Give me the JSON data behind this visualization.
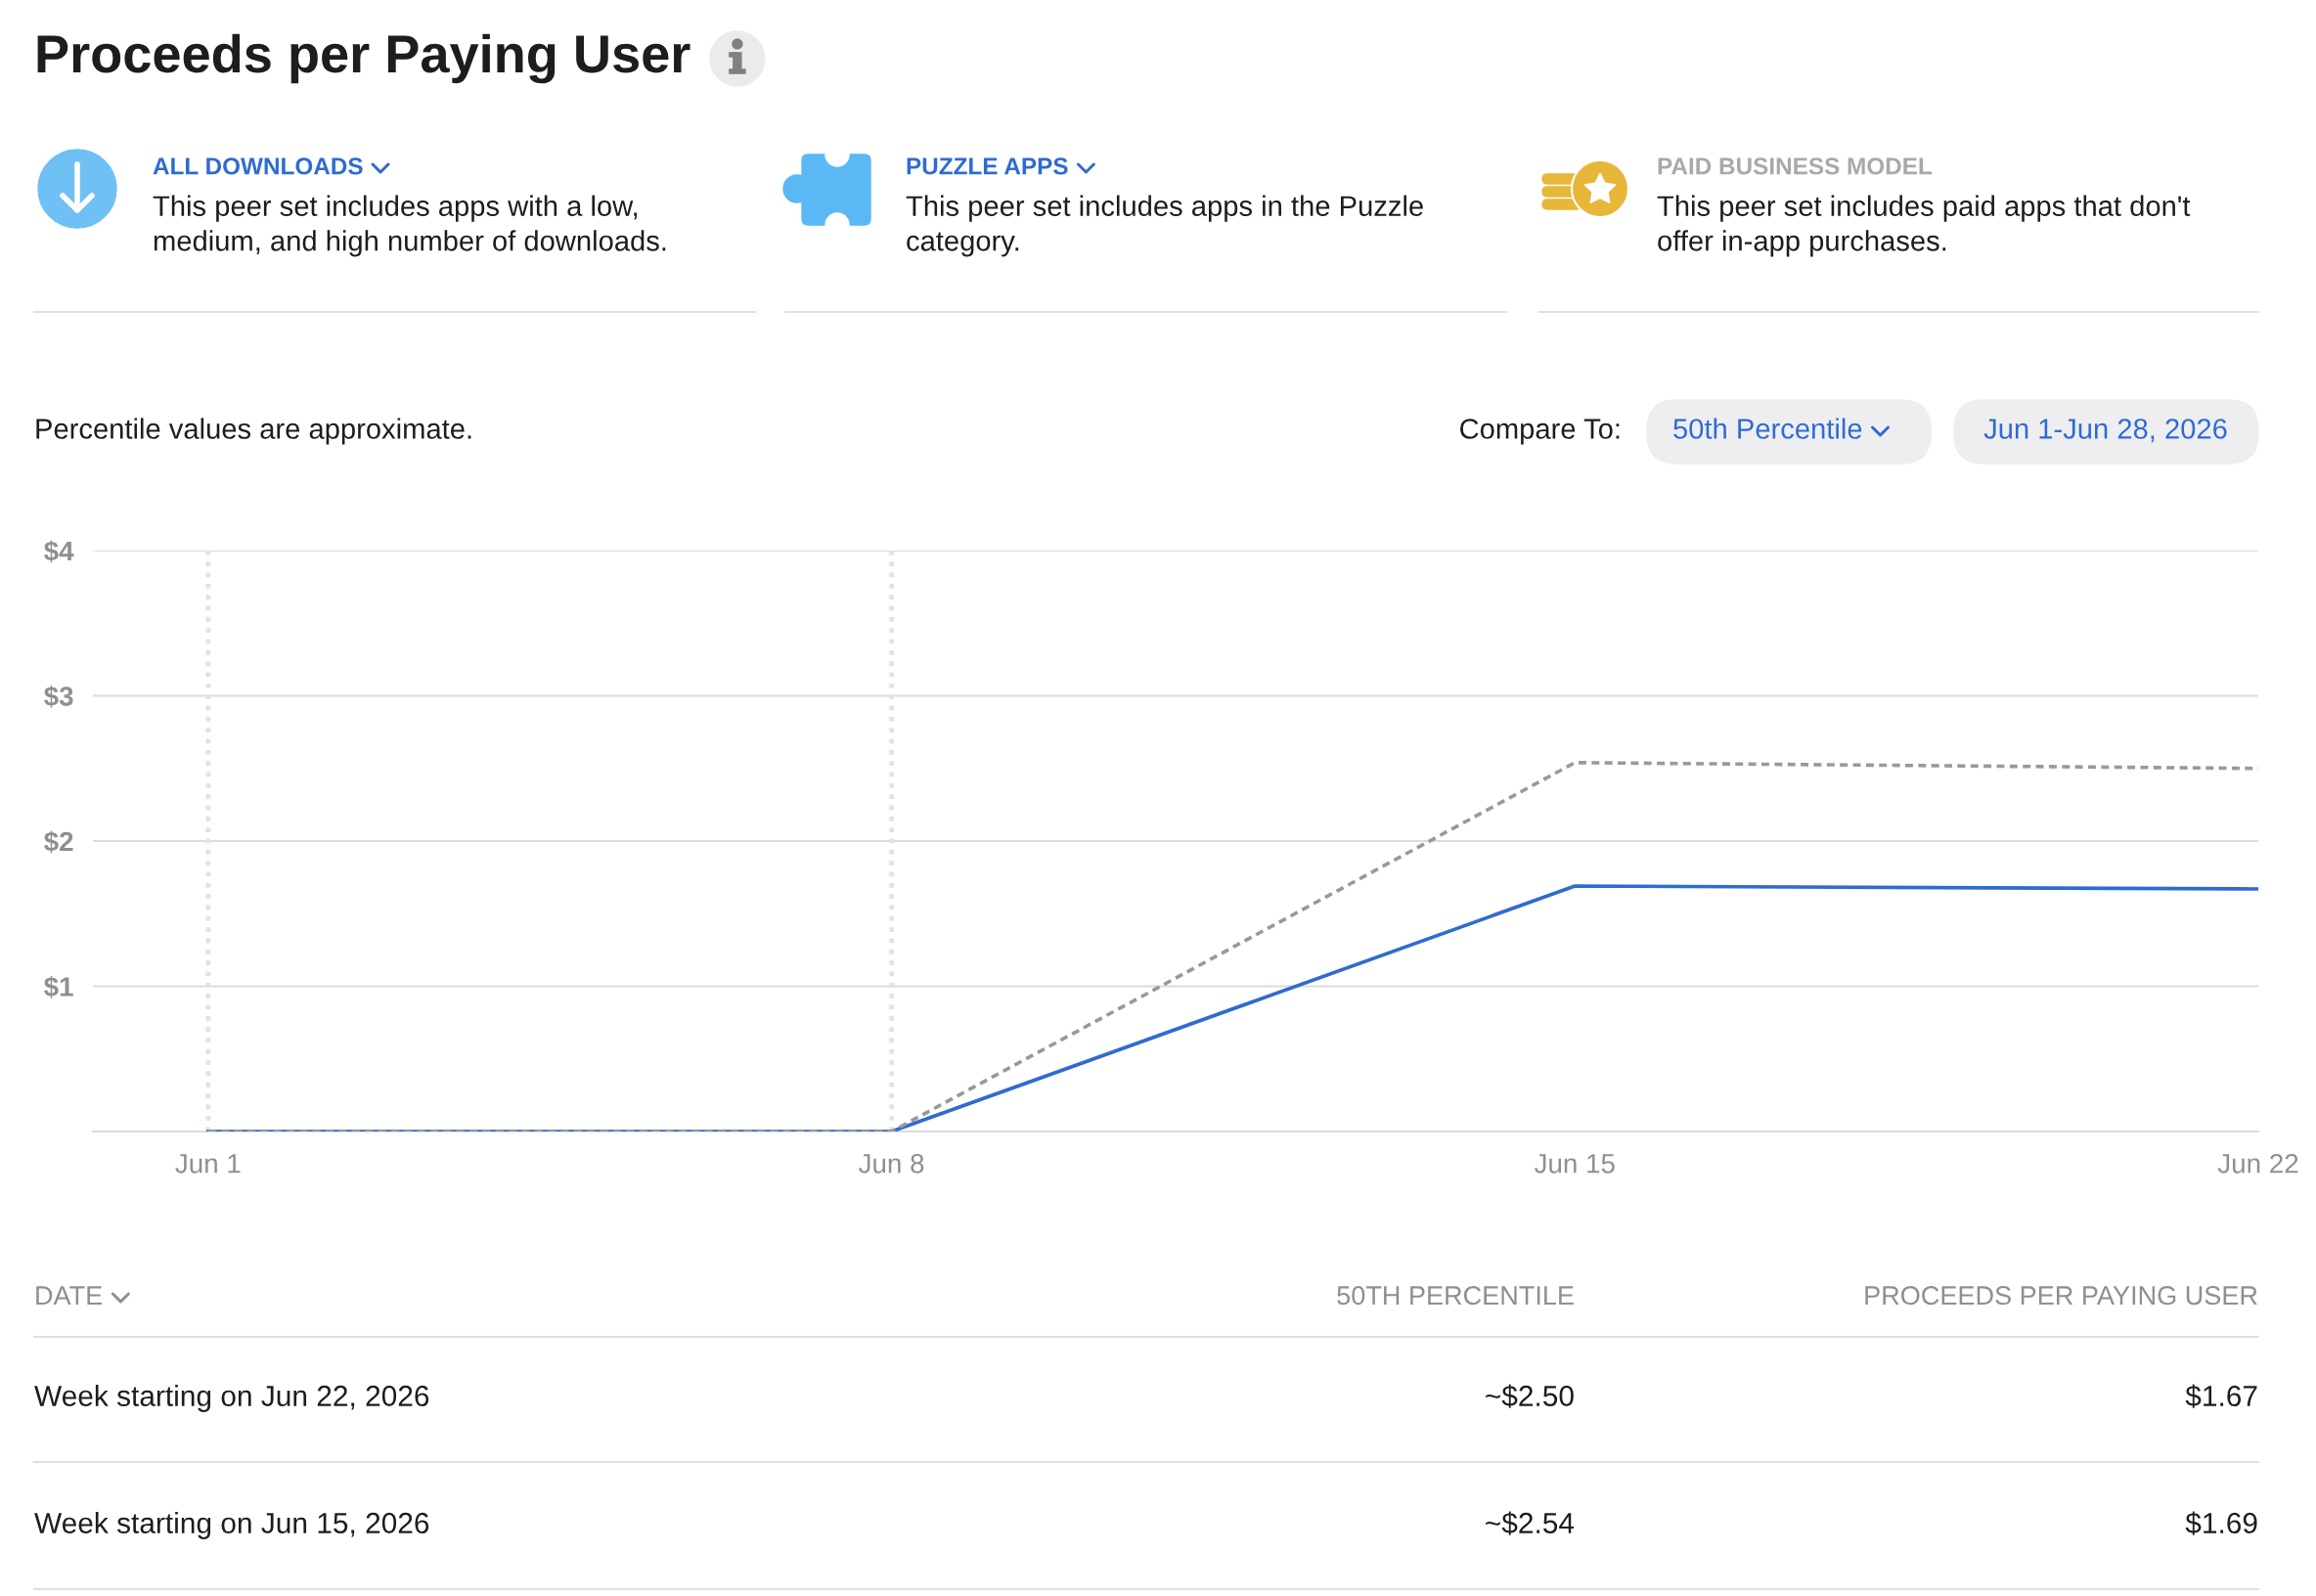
{
  "chart_data": {
    "type": "line",
    "title": "Proceeds per Paying User",
    "x": [
      "2026-06-01",
      "2026-06-08",
      "2026-06-15",
      "2026-06-22"
    ],
    "series": [
      {
        "color": "#2f6bd0",
        "line_style": "solid",
        "values": [
          0,
          0,
          1.69,
          1.67
        ]
      },
      {
        "color": "#999999",
        "line_style": "dashed",
        "values": [
          0,
          0,
          2.54,
          2.5
        ]
      }
    ],
    "xlim": [
      "2026-05-30T19:40",
      "2026-06-22"
    ],
    "xticks": [
      {
        "value": "2026-06-01",
        "label": "Jun 1"
      },
      {
        "value": "2026-06-08",
        "label": "Jun 8"
      },
      {
        "value": "2026-06-15",
        "label": "Jun 15"
      },
      {
        "value": "2026-06-22",
        "label": "Jun 22"
      }
    ],
    "ylim": [
      0,
      4
    ],
    "yticks": [
      {
        "value": 0,
        "label": null
      },
      {
        "value": 1,
        "label": "$1"
      },
      {
        "value": 2,
        "label": "$2"
      },
      {
        "value": 3,
        "label": "$3"
      },
      {
        "value": 4,
        "label": "$4"
      }
    ],
    "grid": "y",
    "marker": "none",
    "ref_lines": [
      {
        "axis": "x",
        "value": "2026-06-01",
        "color": "#e2e2e2",
        "line_style": "dotted"
      },
      {
        "axis": "x",
        "value": "2026-06-08",
        "color": "#e2e2e2",
        "line_style": "dotted"
      }
    ],
    "annotations": [
      "ALL DOWNLOADS",
      "This peer set includes apps with a low,\nmedium, and high number of downloads.",
      "PUZZLE APPS",
      "This peer set includes apps in the Puzzle\ncategory.",
      "PAID BUSINESS MODEL",
      "This peer set includes paid apps that don't\noffer in-app purchases.",
      "Percentile values are approximate.",
      "Compare To:",
      "50th Percentile",
      "Jun 1-Jun 28, 2026",
      "DATE",
      "50TH PERCENTILE",
      "PROCEEDS PER PAYING USER",
      "Week starting on Jun 22, 2026",
      "~$2.50",
      "$1.67",
      "Week starting on Jun 15, 2026",
      "~$2.54",
      "$1.69"
    ]
  }
}
